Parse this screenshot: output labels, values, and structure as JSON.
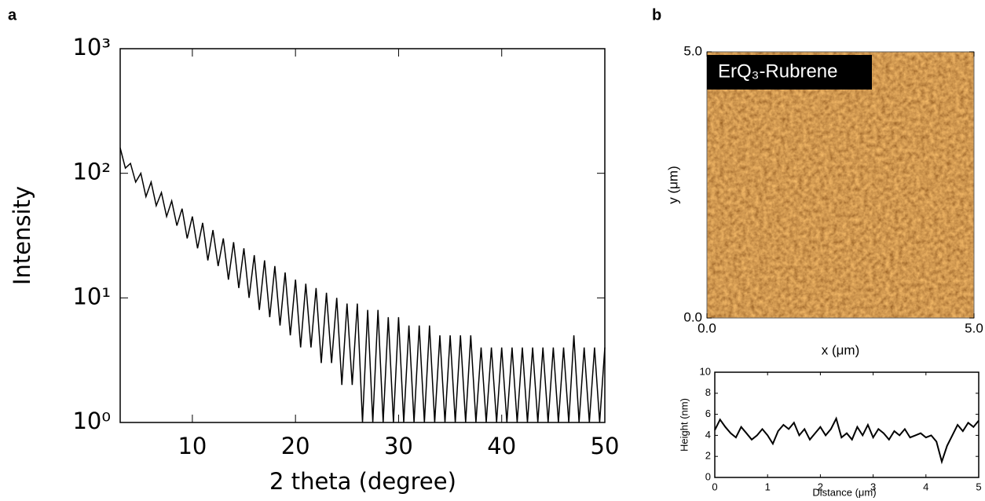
{
  "chart_data": [
    {
      "type": "line",
      "panel_label": "a",
      "x_label": "2 theta (degree)",
      "y_label": "Intensity",
      "log_y": true,
      "xlim": [
        3,
        50
      ],
      "ylim": [
        1,
        1000
      ],
      "xticks": [
        10,
        20,
        30,
        40,
        50
      ],
      "yticks": [
        {
          "value": 1,
          "label": "10⁰"
        },
        {
          "value": 10,
          "label": "10¹"
        },
        {
          "value": 100,
          "label": "10²"
        },
        {
          "value": 1000,
          "label": "10³"
        }
      ],
      "x": [
        3,
        3.5,
        4,
        4.5,
        5,
        5.5,
        6,
        6.5,
        7,
        7.5,
        8,
        8.5,
        9,
        9.5,
        10,
        10.5,
        11,
        11.5,
        12,
        12.5,
        13,
        13.5,
        14,
        14.5,
        15,
        15.5,
        16,
        16.5,
        17,
        17.5,
        18,
        18.5,
        19,
        19.5,
        20,
        20.5,
        21,
        21.5,
        22,
        22.5,
        23,
        23.5,
        24,
        24.5,
        25,
        25.5,
        26,
        26.5,
        27,
        27.5,
        28,
        28.5,
        29,
        29.5,
        30,
        30.5,
        31,
        31.5,
        32,
        32.5,
        33,
        33.5,
        34,
        34.5,
        35,
        35.5,
        36,
        36.5,
        37,
        37.5,
        38,
        38.5,
        39,
        39.5,
        40,
        40.5,
        41,
        41.5,
        42,
        42.5,
        43,
        43.5,
        44,
        44.5,
        45,
        45.5,
        46,
        46.5,
        47,
        47.5,
        48,
        48.5,
        49,
        49.5,
        50
      ],
      "series": [
        {
          "color": "#000000",
          "values": [
            160,
            110,
            120,
            85,
            100,
            65,
            85,
            55,
            70,
            45,
            60,
            38,
            52,
            30,
            45,
            25,
            40,
            20,
            35,
            18,
            30,
            14,
            28,
            12,
            25,
            10,
            22,
            8,
            20,
            7,
            18,
            6,
            16,
            5,
            14,
            4,
            13,
            4,
            12,
            3,
            11,
            3,
            10,
            2,
            9,
            2,
            9,
            1,
            8,
            1,
            8,
            1,
            7,
            1,
            7,
            1,
            6,
            1,
            6,
            1,
            6,
            1,
            5,
            1,
            5,
            1,
            5,
            1,
            5,
            1,
            4,
            1,
            4,
            1,
            4,
            1,
            4,
            1,
            4,
            1,
            4,
            1,
            4,
            1,
            4,
            1,
            4,
            1,
            5,
            1,
            4,
            1,
            4,
            1,
            4
          ]
        }
      ]
    },
    {
      "type": "image",
      "panel_label": "b",
      "annotation": "ErQ₃-Rubrene",
      "x_label": "x (μm)",
      "y_label": "y (μm)",
      "xlim": [
        0,
        5
      ],
      "ylim": [
        0,
        5
      ],
      "xticks": [
        {
          "value": 0,
          "label": "0.0"
        },
        {
          "value": 5,
          "label": "5.0"
        }
      ],
      "yticks": [
        {
          "value": 0,
          "label": "0.0"
        },
        {
          "value": 5,
          "label": "5.0"
        }
      ]
    },
    {
      "type": "line",
      "x_label": "Distance (μm)",
      "y_label": "Height (nm)",
      "xlim": [
        0,
        5
      ],
      "ylim": [
        0,
        10
      ],
      "xticks": [
        0,
        1,
        2,
        3,
        4,
        5
      ],
      "yticks": [
        0,
        2,
        4,
        6,
        8,
        10
      ],
      "x": [
        0,
        0.1,
        0.2,
        0.3,
        0.4,
        0.5,
        0.6,
        0.7,
        0.8,
        0.9,
        1,
        1.1,
        1.2,
        1.3,
        1.4,
        1.5,
        1.6,
        1.7,
        1.8,
        1.9,
        2,
        2.1,
        2.2,
        2.3,
        2.4,
        2.5,
        2.6,
        2.7,
        2.8,
        2.9,
        3,
        3.1,
        3.2,
        3.3,
        3.4,
        3.5,
        3.6,
        3.7,
        3.8,
        3.9,
        4,
        4.1,
        4.2,
        4.3,
        4.4,
        4.5,
        4.6,
        4.7,
        4.8,
        4.9,
        5
      ],
      "series": [
        {
          "color": "#000000",
          "values": [
            4.5,
            5.5,
            4.8,
            4.2,
            3.8,
            4.8,
            4.2,
            3.6,
            4.0,
            4.6,
            4.0,
            3.2,
            4.4,
            5.0,
            4.6,
            5.2,
            4.0,
            4.6,
            3.6,
            4.2,
            4.8,
            4.0,
            4.6,
            5.6,
            3.8,
            4.2,
            3.6,
            4.8,
            4.0,
            5.0,
            3.8,
            4.6,
            4.2,
            3.6,
            4.4,
            4.0,
            4.6,
            3.8,
            4.0,
            4.2,
            3.8,
            4.0,
            3.4,
            1.5,
            3.0,
            4.0,
            5.0,
            4.4,
            5.2,
            4.8,
            5.4
          ]
        }
      ]
    }
  ]
}
